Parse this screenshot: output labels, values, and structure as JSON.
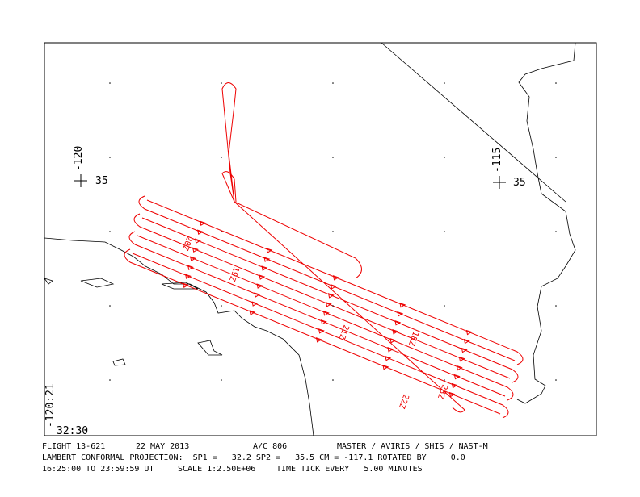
{
  "map": {
    "grid_labels": {
      "lon_west": "-120",
      "lat_west": "35",
      "lon_east": "-115",
      "lat_east": "35",
      "corner_lon": "-120:21",
      "corner_lat": "32:30"
    },
    "track_labels": [
      "20Z",
      "19Z",
      "21Z",
      "18Z",
      "22Z",
      "23Z"
    ],
    "footer": {
      "line1": [
        "FLIGHT 13-621",
        "22 MAY 2013",
        "A/C 806",
        "MASTER / AVIRIS / SHIS / NAST-M"
      ],
      "line2": "LAMBERT CONFORMAL PROJECTION:  SP1 =   32.2 SP2 =   35.5 CM = -117.1 ROTATED BY     0.0",
      "line3": [
        "16:25:00 TO 23:59:59 UT",
        "SCALE 1:2.50E+06",
        "TIME TICK EVERY   5.00 MINUTES"
      ]
    }
  }
}
